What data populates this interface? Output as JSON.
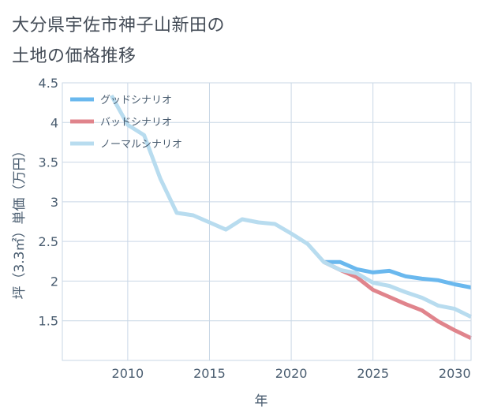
{
  "title": {
    "line1": "大分県宇佐市神子山新田の",
    "line2": "土地の価格推移"
  },
  "chart_data": {
    "type": "line",
    "xlabel": "年",
    "ylabel": "坪（3.3㎡）単価（万円）",
    "xlim": [
      2006,
      2031
    ],
    "ylim": [
      1.0,
      4.5
    ],
    "xticks": [
      2010,
      2015,
      2020,
      2025,
      2030
    ],
    "yticks": [
      1.5,
      2,
      2.5,
      3,
      3.5,
      4,
      4.5
    ],
    "ytick_labels": [
      "1.5",
      "2",
      "2.5",
      "3",
      "3.5",
      "4",
      "4.5"
    ],
    "legend_position": "top-left",
    "series": [
      {
        "name": "グッドシナリオ",
        "color": "#6ab8ee",
        "x": [
          2022,
          2023,
          2024,
          2025,
          2026,
          2027,
          2028,
          2029,
          2030,
          2031
        ],
        "y": [
          2.24,
          2.24,
          2.15,
          2.11,
          2.13,
          2.06,
          2.03,
          2.01,
          1.96,
          1.92
        ]
      },
      {
        "name": "バッドシナリオ",
        "color": "#e0848c",
        "x": [
          2022,
          2023,
          2024,
          2025,
          2026,
          2027,
          2028,
          2029,
          2030,
          2031
        ],
        "y": [
          2.24,
          2.14,
          2.05,
          1.89,
          1.8,
          1.71,
          1.63,
          1.49,
          1.38,
          1.28
        ]
      },
      {
        "name": "ノーマルシナリオ",
        "color": "#b8dcef",
        "x": [
          2009,
          2010,
          2011,
          2012,
          2013,
          2014,
          2015,
          2016,
          2017,
          2018,
          2019,
          2020,
          2021,
          2022,
          2023,
          2024,
          2025,
          2026,
          2027,
          2028,
          2029,
          2030,
          2031
        ],
        "y": [
          4.34,
          3.97,
          3.84,
          3.29,
          2.86,
          2.83,
          2.74,
          2.65,
          2.78,
          2.74,
          2.72,
          2.6,
          2.47,
          2.24,
          2.14,
          2.1,
          1.98,
          1.94,
          1.86,
          1.79,
          1.69,
          1.65,
          1.55
        ]
      }
    ]
  }
}
